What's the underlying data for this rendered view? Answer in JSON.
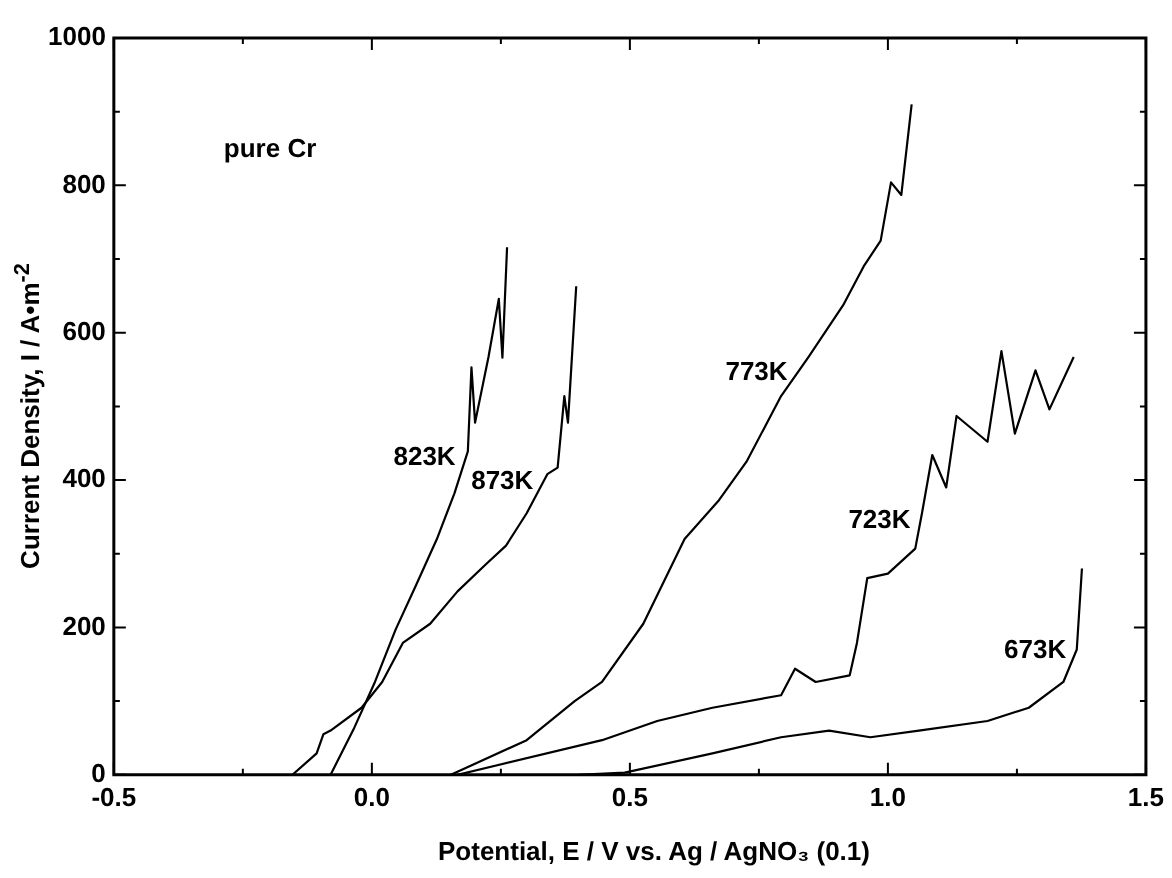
{
  "chart_data": {
    "type": "line",
    "xlabel": "Potential,  E  /  V vs. Ag / AgNO₃ (0.1)",
    "ylabel": "Current Density, I / A•m$^{-2}$",
    "xlim": [
      -0.5,
      1.5
    ],
    "ylim": [
      0,
      1000
    ],
    "xticks": [
      -0.5,
      {
        "value": -0.25,
        "label": null
      },
      {
        "value": 0,
        "label": "0.0"
      },
      {
        "value": 0.25,
        "label": null
      },
      0.5,
      {
        "value": 0.75,
        "label": null
      },
      {
        "value": 1,
        "label": "1.0"
      },
      {
        "value": 1.25,
        "label": null
      },
      1.5
    ],
    "yticks": [
      0,
      {
        "value": 100,
        "label": null
      },
      200,
      {
        "value": 300,
        "label": null
      },
      400,
      {
        "value": 500,
        "label": null
      },
      600,
      {
        "value": 700,
        "label": null
      },
      800,
      {
        "value": 900,
        "label": null
      },
      1000
    ],
    "grid": false,
    "legend": false,
    "marker": "none",
    "line_style": "solid",
    "series": [
      {
        "name": "823K",
        "color": "#000000",
        "x": [
          -0.08,
          -0.034,
          0.006,
          0.046,
          0.086,
          0.126,
          0.16,
          0.186,
          0.193,
          0.2,
          0.226,
          0.246,
          0.253,
          0.262
        ],
        "values": [
          0,
          64,
          126,
          197,
          258,
          320,
          382,
          439,
          553,
          478,
          567,
          646,
          566,
          716
        ]
      },
      {
        "name": "873K",
        "color": "#000000",
        "x": [
          -0.154,
          -0.107,
          -0.094,
          -0.08,
          -0.02,
          0.02,
          0.06,
          0.113,
          0.166,
          0.22,
          0.26,
          0.3,
          0.34,
          0.36,
          0.373,
          0.38,
          0.396
        ],
        "values": [
          0,
          29,
          55,
          60,
          91,
          126,
          179,
          205,
          249,
          285,
          311,
          355,
          408,
          417,
          514,
          478,
          663
        ]
      },
      {
        "name": "773K",
        "color": "#000000",
        "x": [
          0.153,
          0.3,
          0.393,
          0.446,
          0.526,
          0.606,
          0.673,
          0.726,
          0.793,
          0.846,
          0.913,
          0.953,
          0.986,
          1.006,
          1.026,
          1.046
        ],
        "values": [
          0,
          47,
          100,
          126,
          205,
          320,
          373,
          425,
          514,
          567,
          637,
          690,
          725,
          804,
          787,
          910
        ]
      },
      {
        "name": "723K",
        "color": "#000000",
        "x": [
          0.166,
          0.446,
          0.553,
          0.66,
          0.793,
          0.82,
          0.86,
          0.926,
          0.94,
          0.96,
          1.0,
          1.053,
          1.066,
          1.086,
          1.113,
          1.133,
          1.193,
          1.22,
          1.246,
          1.286,
          1.313,
          1.36
        ],
        "values": [
          0,
          47,
          73,
          91,
          108,
          144,
          126,
          135,
          179,
          267,
          273,
          307,
          355,
          434,
          390,
          487,
          452,
          575,
          463,
          549,
          496,
          567
        ]
      },
      {
        "name": "673K",
        "color": "#000000",
        "x": [
          0.4,
          0.49,
          0.66,
          0.793,
          0.886,
          0.966,
          1.06,
          1.193,
          1.273,
          1.34,
          1.366,
          1.376
        ],
        "values": [
          0,
          3,
          29,
          51,
          60,
          51,
          60,
          73,
          91,
          126,
          170,
          280
        ]
      }
    ],
    "annotations": [
      "pure Cr"
    ]
  }
}
